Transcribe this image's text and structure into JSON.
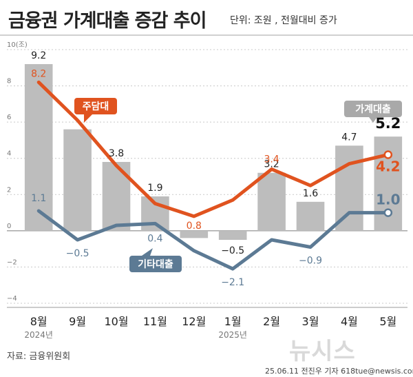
{
  "header": {
    "title": "금융권 가계대출 증감 추이",
    "unit": "단위: 조원 , 전월대비 증가"
  },
  "chart_data": {
    "type": "bar",
    "categories": [
      "8월",
      "9월",
      "10월",
      "11월",
      "12월",
      "1월",
      "2월",
      "3월",
      "4월",
      "5월"
    ],
    "year_labels": [
      {
        "category_index": 0,
        "text": "2024년"
      },
      {
        "category_index": 5,
        "text": "2025년"
      }
    ],
    "ylim": [
      -4,
      10
    ],
    "yticks": [
      -4,
      -2,
      0,
      2,
      4,
      6,
      8,
      10
    ],
    "ytick_labels": [
      "-4",
      "-2",
      "0",
      "2",
      "4",
      "6",
      "8",
      "10(조)"
    ],
    "grid": true,
    "series": [
      {
        "name": "가계대출",
        "kind": "bar",
        "color": "#bdbdbd",
        "values": [
          9.2,
          5.6,
          3.8,
          1.9,
          -0.4,
          -0.5,
          3.2,
          1.6,
          4.7,
          5.2
        ],
        "labels": [
          "9.2",
          "",
          "3.8",
          "1.9",
          "",
          "-0.5",
          "3.2",
          "1.6",
          "4.7",
          "5.2"
        ]
      },
      {
        "name": "주담대",
        "kind": "line",
        "color": "#e0531f",
        "values": [
          8.2,
          6.1,
          3.6,
          1.5,
          0.8,
          1.7,
          3.4,
          2.5,
          3.7,
          4.2
        ],
        "labels": [
          "8.2",
          "",
          "",
          "",
          "0.8",
          "",
          "3.4",
          "",
          "",
          "4.2"
        ]
      },
      {
        "name": "기타대출",
        "kind": "line",
        "color": "#5c7a94",
        "values": [
          1.1,
          -0.5,
          0.3,
          0.4,
          -1.1,
          -2.1,
          -0.5,
          -0.9,
          1.0,
          1.0
        ],
        "labels": [
          "1.1",
          "-0.5",
          "",
          "0.4",
          "",
          "-2.1",
          "",
          "-0.9",
          "",
          "1.0"
        ]
      }
    ]
  },
  "footer": {
    "source": "자료: 금융위원회",
    "logo": "뉴시스",
    "credit": "25.06.11 전진우 기자 618tue@newsis.com"
  },
  "colors": {
    "bar": "#bdbdbd",
    "mortgage": "#e0531f",
    "other_loans": "#5c7a94",
    "last_value_label": "#111111"
  }
}
